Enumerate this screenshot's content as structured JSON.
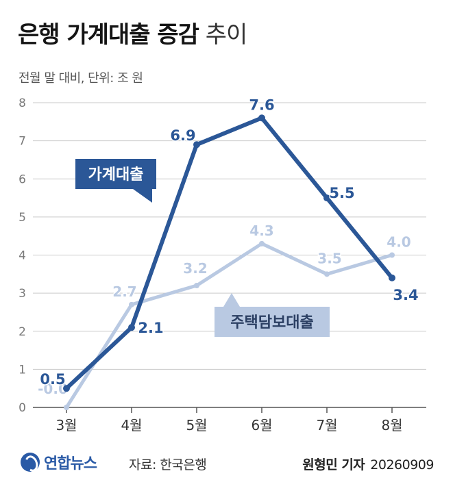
{
  "title": {
    "bold": "은행 가계대출 증감",
    "light": "추이"
  },
  "subtitle": "전월 말 대비, 단위: 조 원",
  "chart_data": {
    "type": "line",
    "categories": [
      "3월",
      "4월",
      "5월",
      "6월",
      "7월",
      "8월"
    ],
    "ylim": [
      0,
      8
    ],
    "yticks": [
      "0",
      "1",
      "2",
      "3",
      "4",
      "5",
      "6",
      "7",
      "8"
    ],
    "grid": true,
    "series": [
      {
        "name": "가계대출",
        "values": [
          0.5,
          2.1,
          6.9,
          7.6,
          5.5,
          3.4
        ],
        "labels": [
          "0.5",
          "2.1",
          "6.9",
          "7.6",
          "5.5",
          "3.4"
        ],
        "color": "#2b5797"
      },
      {
        "name": "주택담보대출",
        "values": [
          -0.0,
          2.7,
          3.2,
          4.3,
          3.5,
          4.0
        ],
        "labels": [
          "-0.0",
          "2.7",
          "3.2",
          "4.3",
          "3.5",
          "4.0"
        ],
        "color": "#b9c9e2"
      }
    ]
  },
  "footer": {
    "logo": "연합뉴스",
    "source": "자료: 한국은행",
    "reporter": "원형민 기자",
    "date": "20260909"
  }
}
